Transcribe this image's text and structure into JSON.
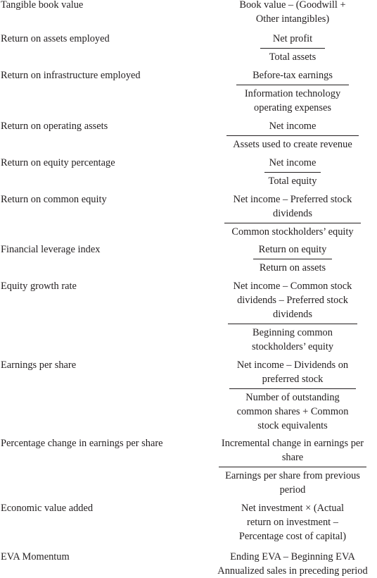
{
  "rows": [
    {
      "term": "Tangible book value",
      "plain": "Book value – (Goodwill + Other intangibles)"
    },
    {
      "term": "Return on assets employed",
      "numerator": "Net profit",
      "denominator": "Total assets"
    },
    {
      "term": "Return on infrastructure employed",
      "numerator": "Before-tax earnings",
      "denominator": "Information technology operating expenses"
    },
    {
      "term": "Return on operating assets",
      "numerator": "Net income",
      "denominator": "Assets used to create revenue"
    },
    {
      "term": "Return on equity percentage",
      "numerator": "Net income",
      "denominator": "Total equity"
    },
    {
      "term": "Return on common equity",
      "numerator": "Net income – Preferred stock dividends",
      "denominator": "Common stockholders’ equity"
    },
    {
      "term": "Financial leverage index",
      "numerator": "Return on equity",
      "denominator": "Return on assets"
    },
    {
      "term": "Equity growth rate",
      "numerator": "Net income – Common stock dividends – Preferred stock dividends",
      "denominator": "Beginning common stockholders’ equity"
    },
    {
      "term": "Earnings per share",
      "numerator": "Net income – Dividends on preferred stock",
      "denominator": "Number of outstanding common shares + Common stock equivalents"
    },
    {
      "term": "Percentage change in earnings per share",
      "numerator": "Incremental change in earnings per share",
      "denominator": "Earnings per share from previous period"
    },
    {
      "term": "Economic value added",
      "plain": "Net investment × (Actual return on investment – Percentage cost of capital)"
    },
    {
      "term": "EVA Momentum",
      "numerator": "Ending EVA – Beginning EVA",
      "denominator": "Annualized sales in preceding period"
    }
  ]
}
